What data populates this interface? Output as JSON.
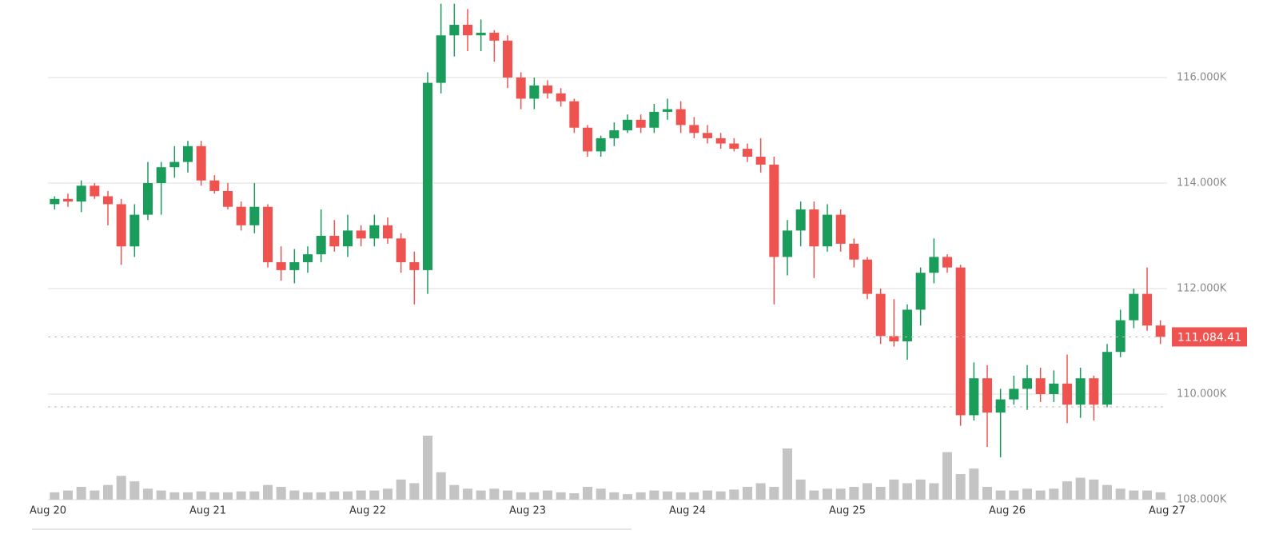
{
  "chart_data": {
    "type": "candlestick",
    "open": [
      113600,
      113700,
      113650,
      113950,
      113750,
      113600,
      112800,
      113400,
      114000,
      114300,
      114400,
      114700,
      114050,
      113850,
      113550,
      113200,
      113550,
      112500,
      112350,
      112500,
      112650,
      113000,
      112800,
      113100,
      112950,
      113200,
      112950,
      112500,
      112350,
      115900,
      116800,
      117000,
      116800,
      116850,
      116700,
      116000,
      115600,
      115850,
      115700,
      115550,
      115050,
      114600,
      114850,
      115000,
      115200,
      115050,
      115350,
      115400,
      115100,
      114950,
      114850,
      114750,
      114650,
      114500,
      114350,
      112600,
      113100,
      113500,
      112800,
      113400,
      112850,
      112550,
      111900,
      111100,
      111000,
      111600,
      112300,
      112600,
      112400,
      109600,
      110300,
      109650,
      109900,
      110100,
      110300,
      110000,
      110200,
      109800,
      110300,
      109800,
      110800,
      111400,
      111900,
      111300
    ],
    "high": [
      113750,
      113800,
      114050,
      114000,
      113850,
      113700,
      113600,
      114400,
      114400,
      114700,
      114800,
      114800,
      114150,
      114000,
      113650,
      114000,
      113600,
      112800,
      112750,
      112800,
      113500,
      113300,
      113400,
      113200,
      113400,
      113350,
      113050,
      112700,
      116100,
      117400,
      117400,
      117300,
      117100,
      116900,
      116800,
      116100,
      116000,
      115950,
      115800,
      115600,
      115100,
      114900,
      115150,
      115300,
      115300,
      115500,
      115600,
      115550,
      115250,
      115100,
      114950,
      114850,
      114750,
      114850,
      114500,
      113300,
      113650,
      113650,
      113600,
      113500,
      112950,
      112600,
      112000,
      111800,
      111700,
      112400,
      112950,
      112650,
      112450,
      110600,
      110550,
      110100,
      110350,
      110550,
      110500,
      110450,
      110750,
      110500,
      110350,
      110950,
      111600,
      112000,
      112400,
      111400
    ],
    "low": [
      113500,
      113550,
      113450,
      113700,
      113200,
      112450,
      112600,
      113300,
      113400,
      114100,
      114200,
      113950,
      113800,
      113500,
      113100,
      113050,
      112400,
      112150,
      112100,
      112300,
      112500,
      112700,
      112600,
      112800,
      112800,
      112850,
      112300,
      111700,
      111900,
      115700,
      116400,
      116500,
      116500,
      116300,
      115800,
      115400,
      115400,
      115600,
      115450,
      114950,
      114500,
      114500,
      114700,
      114950,
      114950,
      114950,
      115200,
      114950,
      114850,
      114750,
      114650,
      114600,
      114400,
      114200,
      111700,
      112250,
      112800,
      112200,
      112700,
      112700,
      112400,
      111800,
      110950,
      110900,
      110650,
      111300,
      112100,
      112300,
      109400,
      109500,
      109000,
      108800,
      109800,
      109700,
      109850,
      109850,
      109450,
      109550,
      109500,
      109750,
      110700,
      111250,
      111200,
      110950
    ],
    "close": [
      113700,
      113650,
      113950,
      113750,
      113600,
      112800,
      113400,
      114000,
      114300,
      114400,
      114700,
      114050,
      113850,
      113550,
      113200,
      113550,
      112500,
      112350,
      112500,
      112650,
      113000,
      112800,
      113100,
      112950,
      113200,
      112950,
      112500,
      112350,
      115900,
      116800,
      117000,
      116800,
      116850,
      116700,
      116000,
      115600,
      115850,
      115700,
      115550,
      115050,
      114600,
      114850,
      115000,
      115200,
      115050,
      115350,
      115400,
      115100,
      114950,
      114850,
      114750,
      114650,
      114500,
      114350,
      112600,
      113100,
      113500,
      112800,
      113400,
      112850,
      112550,
      111900,
      111100,
      111000,
      111600,
      112300,
      112600,
      112400,
      109600,
      110300,
      109650,
      109900,
      110100,
      110300,
      110000,
      110200,
      109800,
      110300,
      109800,
      110800,
      111400,
      111900,
      111300,
      111084.41
    ],
    "volume": [
      8,
      10,
      14,
      10,
      16,
      26,
      20,
      12,
      10,
      8,
      8,
      9,
      8,
      8,
      9,
      9,
      16,
      14,
      10,
      8,
      8,
      9,
      9,
      10,
      10,
      12,
      22,
      18,
      70,
      30,
      16,
      12,
      10,
      12,
      10,
      8,
      8,
      10,
      8,
      7,
      14,
      12,
      8,
      6,
      8,
      10,
      9,
      8,
      8,
      10,
      9,
      11,
      14,
      18,
      14,
      56,
      22,
      10,
      12,
      12,
      14,
      18,
      14,
      22,
      18,
      22,
      18,
      52,
      28,
      34,
      14,
      10,
      10,
      12,
      10,
      12,
      20,
      24,
      22,
      16,
      12,
      10,
      10,
      8
    ],
    "up_color": "#1a9c5b",
    "down_color": "#ef5350",
    "volume_color": "#c4c4c4",
    "xlim": [
      0,
      84
    ],
    "xticks": [
      {
        "value": 0,
        "label": "Aug 20"
      },
      {
        "value": 12,
        "label": "Aug 21"
      },
      {
        "value": 24,
        "label": "Aug 22"
      },
      {
        "value": 36,
        "label": "Aug 23"
      },
      {
        "value": 48,
        "label": "Aug 24"
      },
      {
        "value": 60,
        "label": "Aug 25"
      },
      {
        "value": 72,
        "label": "Aug 26"
      },
      {
        "value": 84,
        "label": "Aug 27"
      }
    ],
    "ylim": [
      108000,
      117470
    ],
    "yticks": [
      {
        "value": 108000,
        "label": "108.000K"
      },
      {
        "value": 110000,
        "label": "110.000K"
      },
      {
        "value": 112000,
        "label": "112.000K"
      },
      {
        "value": 114000,
        "label": "114.000K"
      },
      {
        "value": 116000,
        "label": "116.000K"
      }
    ],
    "grid": true,
    "price_line": {
      "value": 111084.41,
      "label": "111,084.41"
    },
    "low_line": 109758
  }
}
